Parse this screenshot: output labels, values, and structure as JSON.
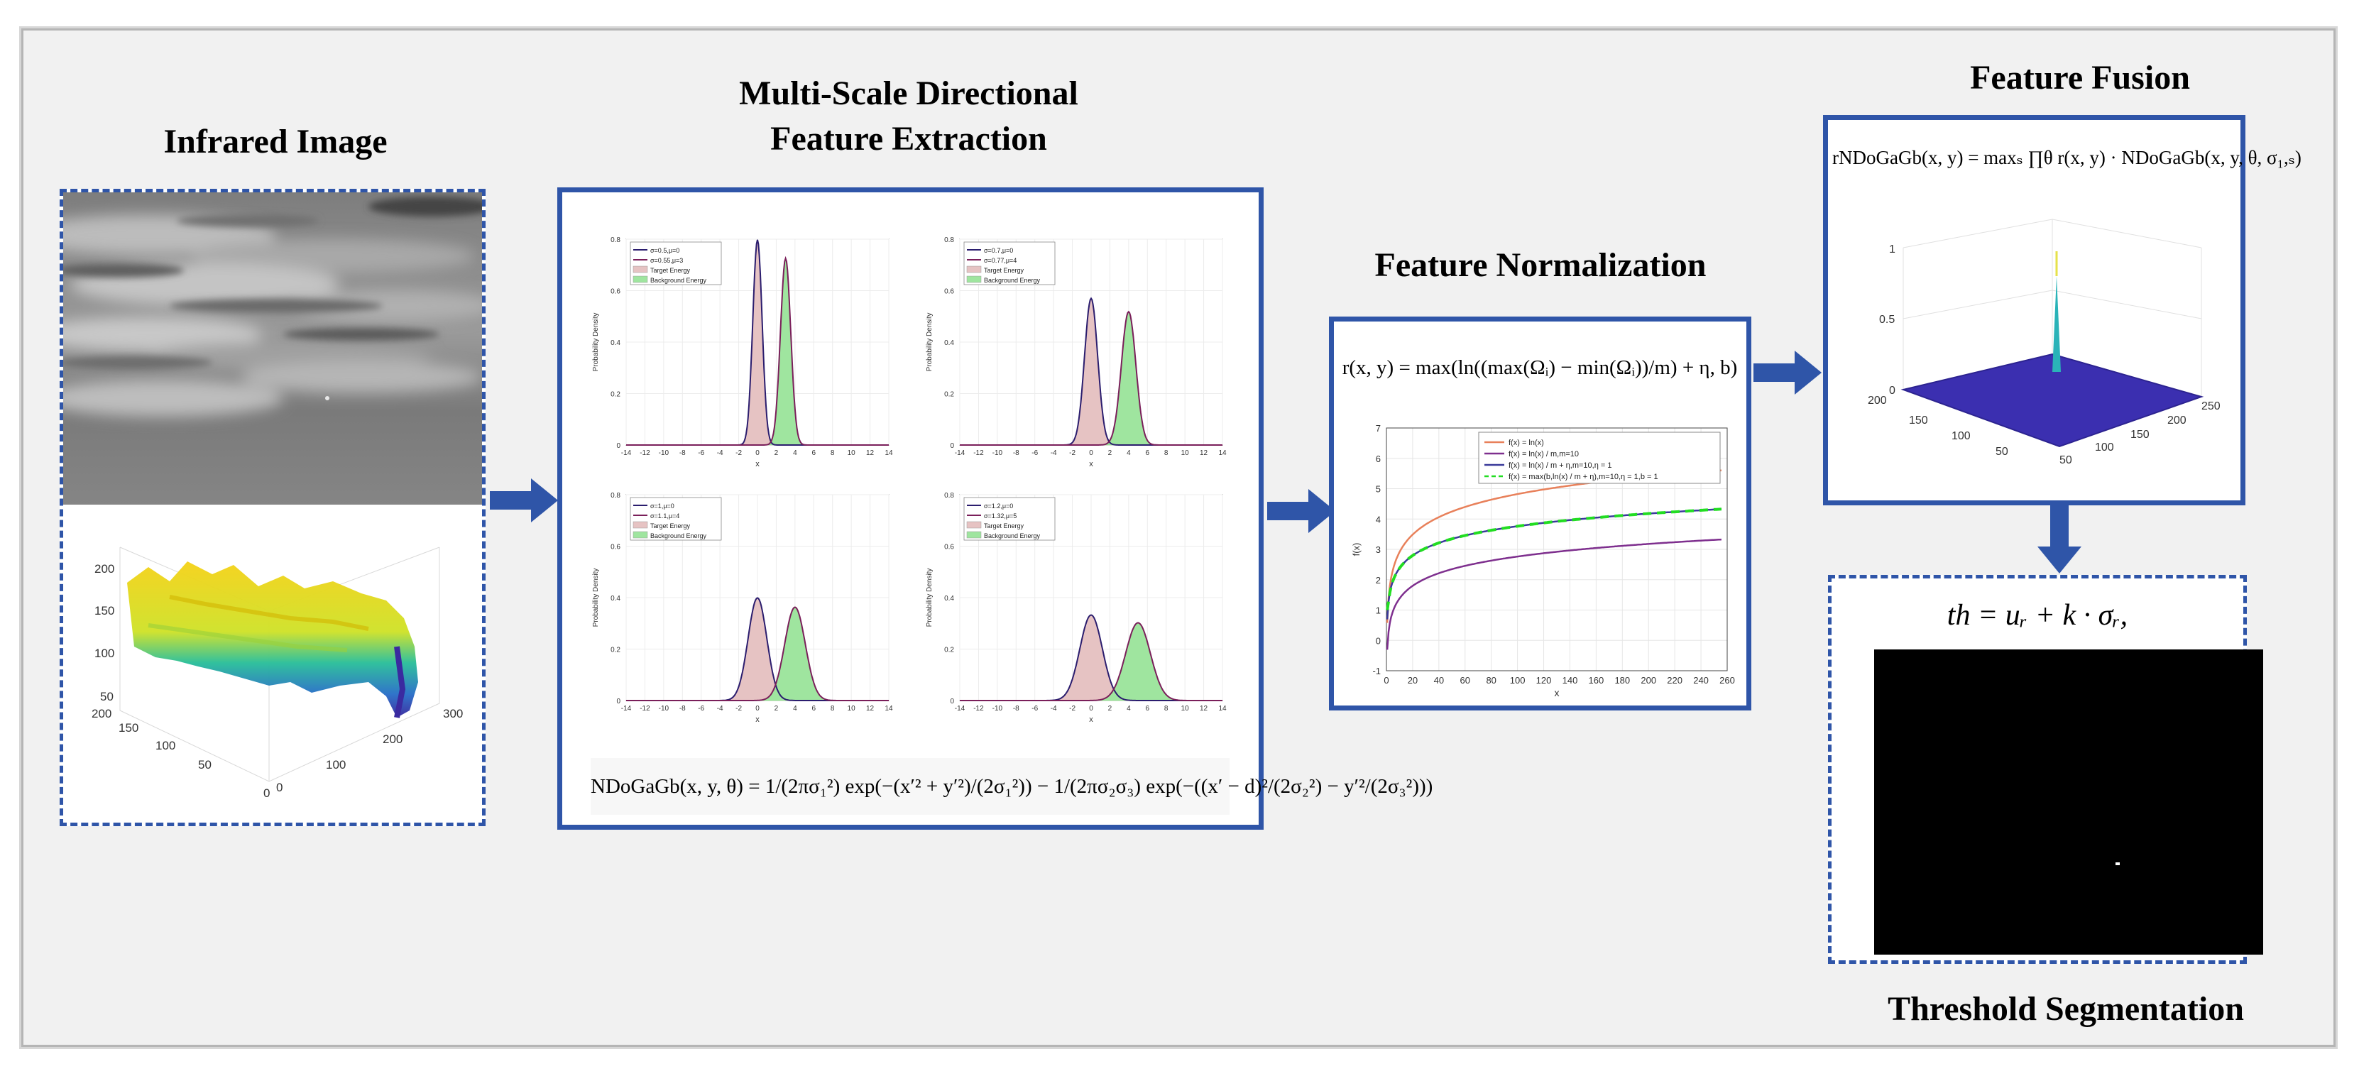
{
  "titles": {
    "infrared": "Infrared Image",
    "multiscale": "Multi-Scale Directional\nFeature Extraction",
    "normalization": "Feature Normalization",
    "fusion": "Feature Fusion",
    "threshold": "Threshold Segmentation"
  },
  "formulas": {
    "ndogagb": "NDoGaGb(x, y, θ) = 1/(2πσ₁²) exp(−(x′² + y′²)/(2σ₁²)) − 1/(2πσ₂σ₃) exp(−((x′ − d)²/(2σ₂²) − y′²/(2σ₃²)))",
    "normalization": "r(x, y) = max(ln((max(Ωᵢ) − min(Ωᵢ))/m) + η, b)",
    "fusion": "rNDoGaGb(x, y) = maxₛ ∏θ r(x, y) · NDoGaGb(x, y, θ, σ₁,ₛ)",
    "threshold": "th = uᵣ + k · σᵣ,"
  },
  "surface_plot": {
    "z_ticks": [
      "200",
      "150",
      "100",
      "50"
    ],
    "x_ticks": [
      "200",
      "150",
      "100",
      "50",
      "0"
    ],
    "y_ticks": [
      "0",
      "100",
      "200",
      "300"
    ]
  },
  "pdf_plots": {
    "x_ticks": [
      "-14",
      "-12",
      "-10",
      "-8",
      "-6",
      "-4",
      "-2",
      "0",
      "2",
      "4",
      "6",
      "8",
      "10",
      "12",
      "14"
    ],
    "y_ticks": [
      "0",
      "0.2",
      "0.4",
      "0.6",
      "0.8"
    ],
    "xlabel": "x",
    "ylabel": "Probability Density",
    "panels": [
      {
        "legend": [
          "σ=0.5,μ=0",
          "σ=0.55,μ=3",
          "Target Energy",
          "Background Energy"
        ],
        "mu1": 0,
        "s1": 0.5,
        "mu2": 3,
        "s2": 0.55
      },
      {
        "legend": [
          "σ=0.7,μ=0",
          "σ=0.77,μ=4",
          "Target Energy",
          "Background Energy"
        ],
        "mu1": 0,
        "s1": 0.7,
        "mu2": 4,
        "s2": 0.77
      },
      {
        "legend": [
          "σ=1,μ=0",
          "σ=1.1,μ=4",
          "Target Energy",
          "Background Energy"
        ],
        "mu1": 0,
        "s1": 1.0,
        "mu2": 4,
        "s2": 1.1
      },
      {
        "legend": [
          "σ=1.2,μ=0",
          "σ=1.32,μ=5",
          "Target Energy",
          "Background Energy"
        ],
        "mu1": 0,
        "s1": 1.2,
        "mu2": 5,
        "s2": 1.32
      }
    ]
  },
  "chart_data": {
    "type": "line",
    "xlabel": "x",
    "ylabel": "f(x)",
    "xlim": [
      0,
      260
    ],
    "ylim": [
      -1,
      7
    ],
    "x_ticks": [
      "0",
      "20",
      "40",
      "60",
      "80",
      "100",
      "120",
      "140",
      "160",
      "180",
      "200",
      "220",
      "240",
      "260"
    ],
    "y_ticks": [
      "-1",
      "0",
      "1",
      "2",
      "3",
      "4",
      "5",
      "6",
      "7"
    ],
    "series": [
      {
        "name": "f(x) = ln(x)",
        "color": "#e8805a"
      },
      {
        "name": "f(x) = ln(x) / m,m=10",
        "color": "#7e2f8e"
      },
      {
        "name": "f(x) = ln(x) / m + η,m=10,η = 1",
        "color": "#3a3a9a"
      },
      {
        "name": "f(x) = max(b,ln(x) / m + η),m=10,η = 1,b = 1",
        "color": "#22dd22"
      }
    ]
  },
  "fusion_plot": {
    "z_ticks": [
      "1",
      "0.5",
      "0"
    ],
    "x_ticks": [
      "200",
      "150",
      "100",
      "50"
    ],
    "y_ticks": [
      "50",
      "100",
      "150",
      "200",
      "250"
    ]
  },
  "colors": {
    "accent": "#2f55a8",
    "target_fill": "#e6c3c3",
    "background_fill": "#9fe59f"
  }
}
